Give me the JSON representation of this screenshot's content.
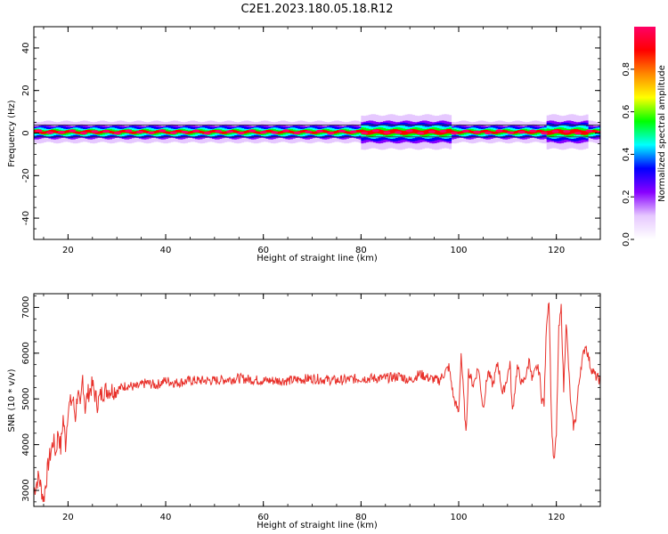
{
  "title": "C2E1.2023.180.05.18.R12",
  "chart_data": [
    {
      "type": "heatmap",
      "name": "spectrogram",
      "xlabel": "Height of straight line (km)",
      "ylabel": "Frequency (Hz)",
      "xlim": [
        13,
        129
      ],
      "ylim": [
        -50,
        50
      ],
      "xticks": [
        20,
        40,
        60,
        80,
        100,
        120
      ],
      "yticks": [
        -40,
        -20,
        0,
        20,
        40
      ],
      "colorbar": {
        "label": "Normalized spectral amplitude",
        "range": [
          0,
          1
        ],
        "ticks": [
          0.0,
          0.2,
          0.4,
          0.6,
          0.8
        ],
        "tick_labels": [
          "0.0",
          "0.2",
          "0.4",
          "0.6",
          "0.8"
        ],
        "colormap": [
          "#ffffff",
          "#e6c8ff",
          "#8800ff",
          "#0000ff",
          "#00ffff",
          "#00ff00",
          "#ffff00",
          "#ff8800",
          "#ff0000",
          "#ff0066"
        ]
      },
      "band": {
        "center_hz": 0.5,
        "half_width_hz": 2.5,
        "outer_half_width_hz": 5,
        "wide_segments": [
          [
            80,
            98
          ],
          [
            118,
            126
          ]
        ]
      },
      "grid": false
    },
    {
      "type": "line",
      "name": "snr",
      "xlabel": "Height of straight line (km)",
      "ylabel": "SNR (10 * v/v)",
      "xlim": [
        13,
        129
      ],
      "ylim": [
        2650,
        7300
      ],
      "xticks": [
        20,
        40,
        60,
        80,
        100,
        120
      ],
      "yticks": [
        3000,
        4000,
        5000,
        6000,
        7000
      ],
      "color": "#e8302a",
      "series": [
        {
          "x": [
            13,
            14,
            15,
            16,
            17,
            17.5,
            18,
            18.5,
            19,
            19.5,
            20,
            21,
            21.5,
            22,
            22.5,
            23,
            23.5,
            24,
            25,
            26,
            27,
            28,
            30,
            32,
            34,
            36,
            38,
            40,
            42,
            45,
            48,
            50,
            55,
            60,
            65,
            70,
            75,
            80,
            85,
            88,
            90,
            92,
            94,
            96,
            98,
            99,
            100,
            100.5,
            101,
            101.5,
            102,
            103,
            104,
            105,
            106,
            107,
            108,
            109,
            110,
            110.5,
            111,
            112,
            113,
            114,
            114.5,
            115,
            116,
            116.5,
            117,
            117.5,
            118,
            118.5,
            119,
            119.5,
            120,
            120.5,
            121,
            121.5,
            122,
            122.5,
            123,
            123.5,
            124,
            124.5,
            125,
            126,
            127,
            128,
            129
          ],
          "values": [
            3000,
            3300,
            2800,
            3600,
            4100,
            3800,
            4300,
            3900,
            4600,
            4000,
            4800,
            5000,
            4600,
            5200,
            4700,
            5500,
            4800,
            5100,
            5300,
            4900,
            5150,
            5200,
            5200,
            5300,
            5250,
            5350,
            5300,
            5400,
            5350,
            5400,
            5400,
            5400,
            5450,
            5400,
            5400,
            5450,
            5400,
            5450,
            5450,
            5500,
            5400,
            5550,
            5450,
            5400,
            5700,
            5000,
            4700,
            6000,
            5100,
            4200,
            5600,
            5300,
            5700,
            4800,
            5600,
            5300,
            5800,
            5100,
            5500,
            5800,
            4700,
            5700,
            5300,
            5600,
            5900,
            5400,
            5700,
            5600,
            5000,
            4900,
            6700,
            7200,
            4500,
            3600,
            4200,
            6500,
            7000,
            5200,
            6700,
            5700,
            4800,
            4400,
            4600,
            5200,
            5700,
            6200,
            5700,
            5500,
            5400
          ]
        }
      ],
      "grid": false
    }
  ]
}
